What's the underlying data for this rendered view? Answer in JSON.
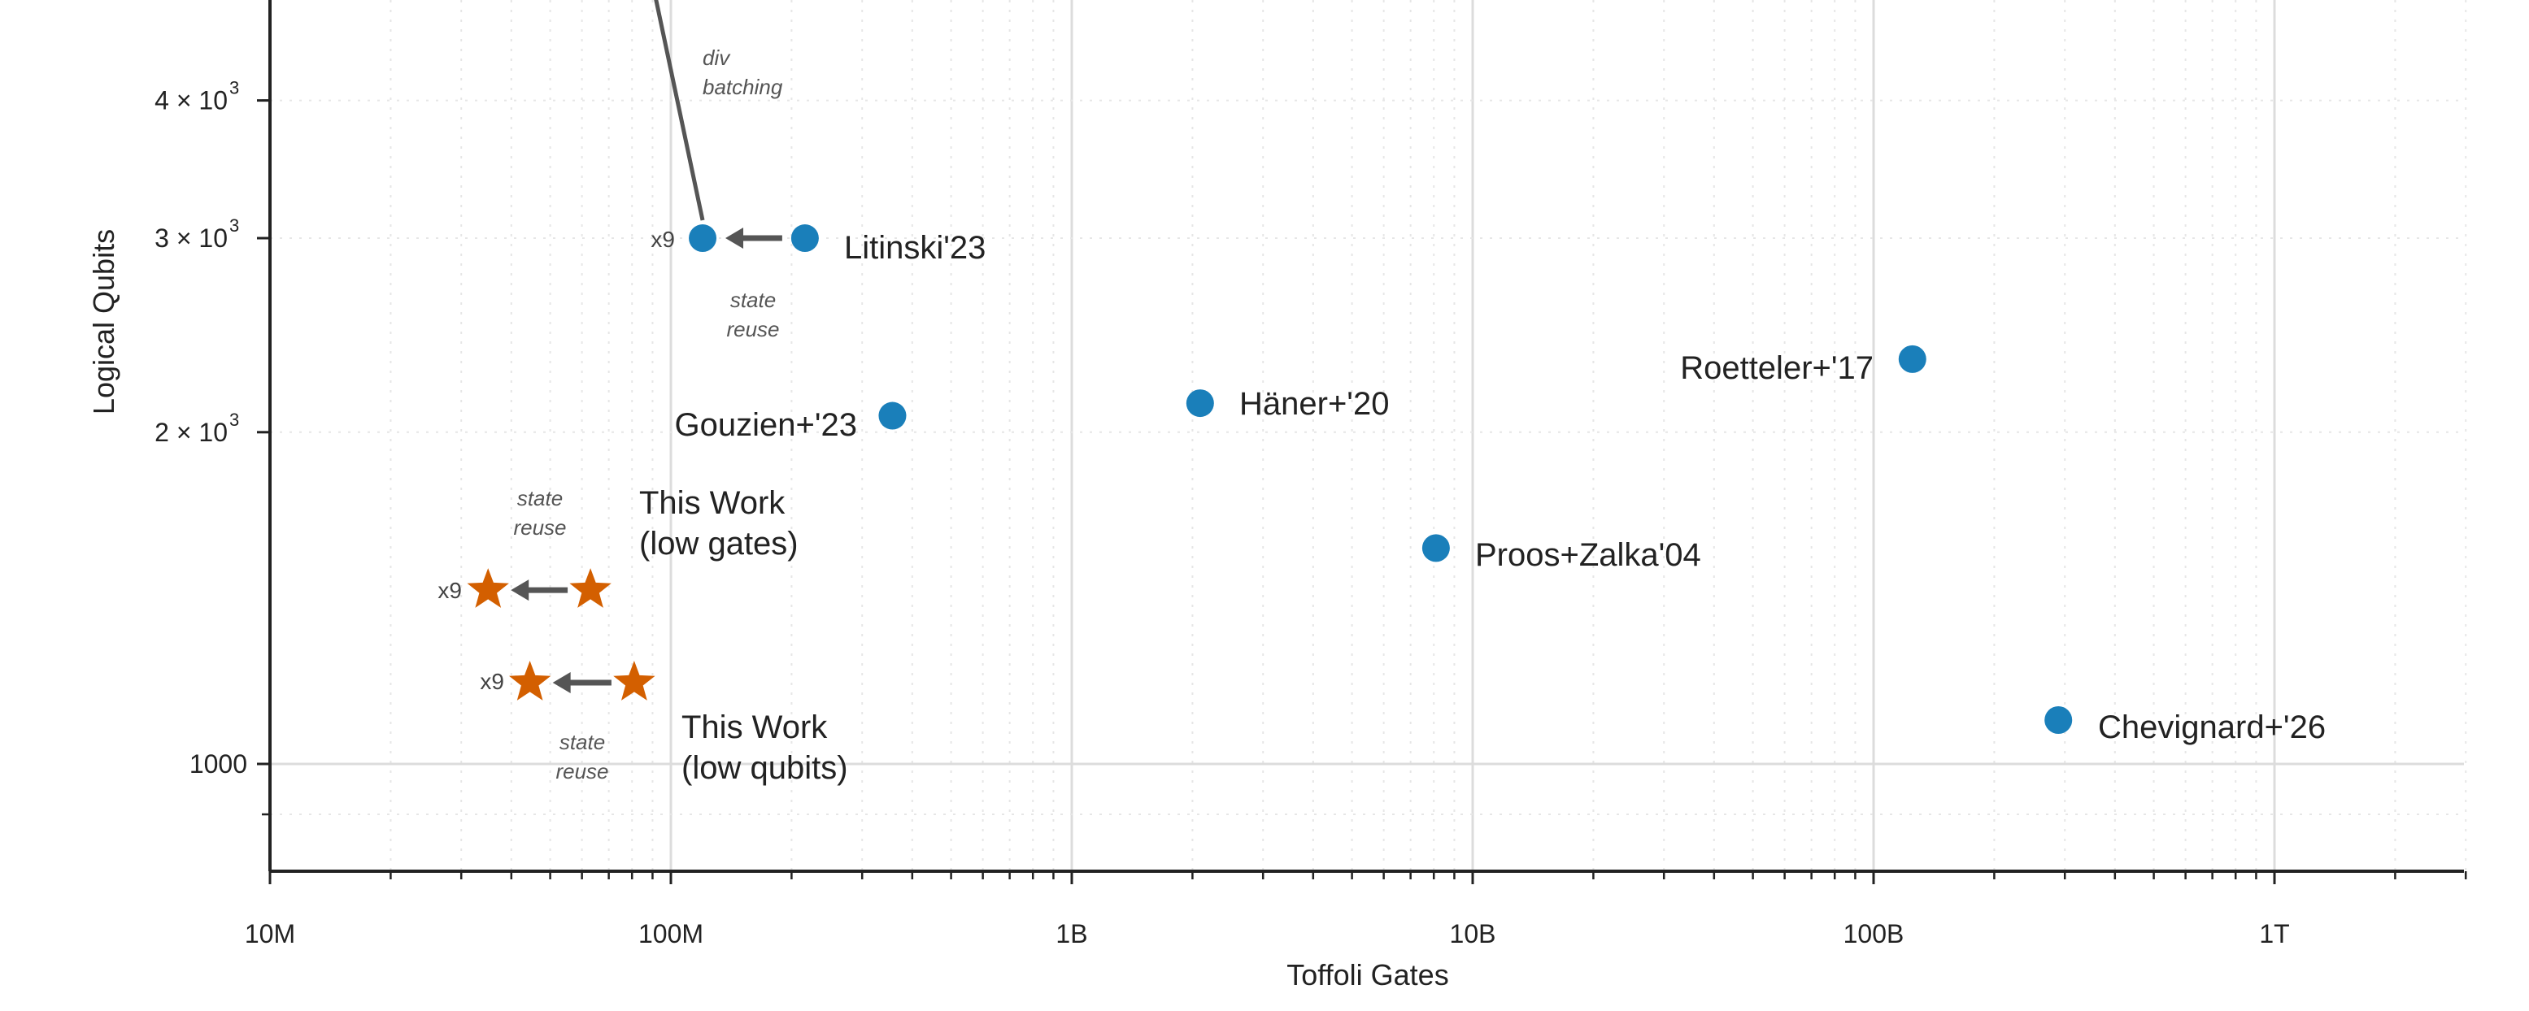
{
  "chart_data": {
    "type": "scatter",
    "xlabel": "Toffoli Gates",
    "ylabel": "Logical Qubits",
    "xscale": "log",
    "yscale": "log",
    "xlim": [
      10000000.0,
      3000000000000.0
    ],
    "ylim": [
      800,
      4930
    ],
    "grid": true,
    "x_ticks": [
      {
        "value": 10000000.0,
        "label": "10M"
      },
      {
        "value": 100000000.0,
        "label": "100M"
      },
      {
        "value": 1000000000.0,
        "label": "1B"
      },
      {
        "value": 10000000000.0,
        "label": "10B"
      },
      {
        "value": 100000000000.0,
        "label": "100B"
      },
      {
        "value": 1000000000000.0,
        "label": "1T"
      }
    ],
    "y_ticks": [
      {
        "value": 1000,
        "label": "1000"
      },
      {
        "value": 2000,
        "label": "2 × 10",
        "sup": "3"
      },
      {
        "value": 3000,
        "label": "3 × 10",
        "sup": "3"
      },
      {
        "value": 4000,
        "label": "4 × 10",
        "sup": "3"
      }
    ],
    "colors": {
      "prior": "#1a7fba",
      "this_work": "#d35f00",
      "arrow": "#555555"
    },
    "points": [
      {
        "label": "Litinski'23",
        "x": 216000000.0,
        "y": 3000,
        "marker": "circle"
      },
      {
        "label": "",
        "x": 120000000.0,
        "y": 3000,
        "marker": "circle"
      },
      {
        "label": "Gouzien+'23",
        "x": 357000000.0,
        "y": 2070,
        "marker": "circle"
      },
      {
        "label": "Häner+'20",
        "x": 2090000000.0,
        "y": 2125,
        "marker": "circle"
      },
      {
        "label": "Roetteler+'17",
        "x": 125000000000.0,
        "y": 2330,
        "marker": "circle"
      },
      {
        "label": "Proos+Zalka'04",
        "x": 8100000000.0,
        "y": 1570,
        "marker": "circle"
      },
      {
        "label": "Chevignard+'26",
        "x": 289000000000.0,
        "y": 1096,
        "marker": "circle"
      },
      {
        "label": "This Work\n(low gates)",
        "line1": "This Work",
        "line2": "(low gates)",
        "x": 63000000.0,
        "y": 1438,
        "marker": "star"
      },
      {
        "label": "",
        "x": 35000000.0,
        "y": 1438,
        "marker": "star"
      },
      {
        "label": "This Work\n(low qubits)",
        "line1": "This Work",
        "line2": "(low qubits)",
        "x": 81000000.0,
        "y": 1185,
        "marker": "star"
      },
      {
        "label": "",
        "x": 44500000.0,
        "y": 1185,
        "marker": "star"
      }
    ],
    "arrows": [
      {
        "from": [
          216000000.0,
          3000
        ],
        "to": [
          120000000.0,
          3000
        ],
        "annotation": [
          "state",
          "reuse"
        ],
        "factor": "x9"
      },
      {
        "from": [
          63000000.0,
          1438
        ],
        "to": [
          35000000.0,
          1438
        ],
        "annotation": [
          "state",
          "reuse"
        ],
        "factor": "x9"
      },
      {
        "from": [
          81000000.0,
          1185
        ],
        "to": [
          44500000.0,
          1185
        ],
        "annotation": [
          "state",
          "reuse"
        ],
        "factor": "x9"
      }
    ],
    "div_batching": {
      "from": [
        120000000.0,
        3000
      ],
      "to_offscale": [
        82000000.0,
        6000
      ],
      "annotation": [
        "div",
        "batching"
      ]
    }
  }
}
